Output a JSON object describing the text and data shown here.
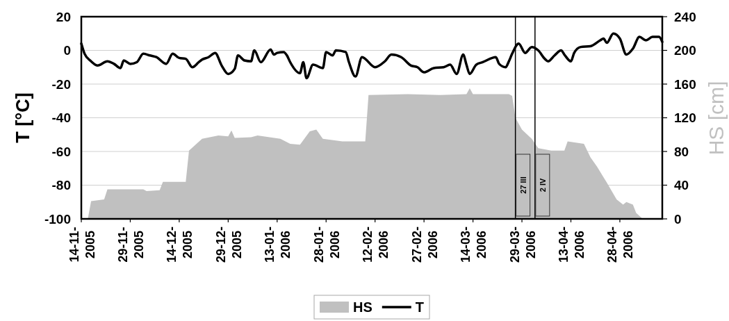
{
  "chart_data": {
    "type": "line",
    "ylabel": "T [°C]",
    "y2label": "HS [cm]",
    "xlim": [
      "2005-11-14",
      "2006-05-11"
    ],
    "xticks": [
      {
        "value": "2005-11-14",
        "label": "14-11-2005"
      },
      {
        "value": "2005-11-29",
        "label": "29-11-2005"
      },
      {
        "value": "2005-12-14",
        "label": "14-12-2005"
      },
      {
        "value": "2005-12-29",
        "label": "29-12-2005"
      },
      {
        "value": "2006-01-13",
        "label": "13-01-2006"
      },
      {
        "value": "2006-01-28",
        "label": "28-01-2006"
      },
      {
        "value": "2006-02-12",
        "label": "12-02-2006"
      },
      {
        "value": "2006-02-27",
        "label": "27-02-2006"
      },
      {
        "value": "2006-03-14",
        "label": "14-03-2006"
      },
      {
        "value": "2006-03-29",
        "label": "29-03-2006"
      },
      {
        "value": "2006-04-13",
        "label": "13-04-2006"
      },
      {
        "value": "2006-04-28",
        "label": "28-04-2006"
      }
    ],
    "ylim": [
      -100,
      20
    ],
    "yticks": [
      -100,
      -80,
      -60,
      -40,
      -20,
      0,
      20
    ],
    "y2lim": [
      0,
      240
    ],
    "y2ticks": [
      0,
      40,
      80,
      120,
      160,
      200,
      240
    ],
    "grid": "y",
    "legend": "bottom",
    "series": [
      {
        "name": "HS",
        "type": "area",
        "axis": "y2",
        "color": "#c0c0c0",
        "x": [
          "2005-11-14",
          "2005-11-16",
          "2005-11-17",
          "2005-11-21",
          "2005-11-22",
          "2005-12-03",
          "2005-12-04",
          "2005-12-08",
          "2005-12-09",
          "2005-12-16",
          "2005-12-17",
          "2005-12-21",
          "2005-12-26",
          "2005-12-29",
          "2005-12-30",
          "2005-12-31",
          "2006-01-05",
          "2006-01-07",
          "2006-01-14",
          "2006-01-17",
          "2006-01-20",
          "2006-01-23",
          "2006-01-25",
          "2006-01-27",
          "2006-02-02",
          "2006-02-09",
          "2006-02-10",
          "2006-02-22",
          "2006-03-04",
          "2006-03-12",
          "2006-03-13",
          "2006-03-14",
          "2006-03-25",
          "2006-03-26",
          "2006-03-27",
          "2006-03-29",
          "2006-04-01",
          "2006-04-03",
          "2006-04-07",
          "2006-04-11",
          "2006-04-12",
          "2006-04-17",
          "2006-04-19",
          "2006-04-21",
          "2006-04-24",
          "2006-04-27",
          "2006-04-29",
          "2006-04-30",
          "2006-05-02",
          "2006-05-03",
          "2006-05-05",
          "2006-05-11"
        ],
        "values": [
          0,
          0,
          21,
          23,
          35,
          35,
          33,
          34,
          44,
          44,
          81,
          95,
          99,
          98,
          105,
          96,
          97,
          99,
          95,
          89,
          88,
          104,
          106,
          95,
          92,
          92,
          147,
          148,
          147,
          148,
          155,
          148,
          148,
          146,
          120,
          106,
          95,
          84,
          81,
          81,
          92,
          89,
          73,
          62,
          43,
          23,
          17,
          20,
          17,
          7,
          0,
          0
        ]
      },
      {
        "name": "T",
        "type": "line",
        "color": "#000000",
        "x": [
          "2005-11-14",
          "2005-11-15",
          "2005-11-17",
          "2005-11-19",
          "2005-11-22",
          "2005-11-24",
          "2005-11-26",
          "2005-11-27",
          "2005-11-29",
          "2005-12-01",
          "2005-12-03",
          "2005-12-05",
          "2005-12-07",
          "2005-12-10",
          "2005-12-12",
          "2005-12-14",
          "2005-12-16",
          "2005-12-18",
          "2005-12-20",
          "2005-12-21",
          "2005-12-23",
          "2005-12-25",
          "2005-12-27",
          "2005-12-29",
          "2005-12-31",
          "2006-01-01",
          "2006-01-03",
          "2006-01-05",
          "2006-01-06",
          "2006-01-08",
          "2006-01-11",
          "2006-01-12",
          "2006-01-13",
          "2006-01-15",
          "2006-01-16",
          "2006-01-17",
          "2006-01-20",
          "2006-01-21",
          "2006-01-22",
          "2006-01-24",
          "2006-01-27",
          "2006-01-28",
          "2006-01-30",
          "2006-01-31",
          "2006-02-03",
          "2006-02-04",
          "2006-02-06",
          "2006-02-08",
          "2006-02-12",
          "2006-02-15",
          "2006-02-17",
          "2006-02-20",
          "2006-02-23",
          "2006-02-25",
          "2006-02-27",
          "2006-03-02",
          "2006-03-05",
          "2006-03-07",
          "2006-03-09",
          "2006-03-11",
          "2006-03-12",
          "2006-03-13",
          "2006-03-15",
          "2006-03-17",
          "2006-03-21",
          "2006-03-22",
          "2006-03-24",
          "2006-03-25",
          "2006-03-26",
          "2006-03-28",
          "2006-03-30",
          "2006-04-01",
          "2006-04-03",
          "2006-04-05",
          "2006-04-06",
          "2006-04-08",
          "2006-04-10",
          "2006-04-11",
          "2006-04-13",
          "2006-04-14",
          "2006-04-16",
          "2006-04-19",
          "2006-04-22",
          "2006-04-23",
          "2006-04-24",
          "2006-04-26",
          "2006-04-28",
          "2006-04-30",
          "2006-05-02",
          "2006-05-04",
          "2006-05-06",
          "2006-05-08",
          "2006-05-10",
          "2006-05-11"
        ],
        "values": [
          4,
          -2,
          -6.5,
          -9,
          -6.5,
          -8,
          -10.5,
          -6,
          -8,
          -7,
          -2,
          -3,
          -4,
          -8,
          -2,
          -4.5,
          -5,
          -10,
          -7,
          -5.5,
          -4,
          -1.5,
          -9,
          -14,
          -11,
          -3,
          -6,
          -6.5,
          0,
          -7,
          0.5,
          -2.5,
          -1.5,
          -1,
          -3,
          -7,
          -13.5,
          -7,
          -16.5,
          -8.5,
          -10.5,
          -1,
          -3,
          0,
          -1,
          -7,
          -15.5,
          -4,
          -10,
          -6.5,
          -2.5,
          -4,
          -9,
          -10,
          -13,
          -10.5,
          -10,
          -8.5,
          -14,
          -2.5,
          -8.5,
          -14,
          -8.5,
          -7,
          -4,
          -8,
          -10,
          -6.5,
          -2,
          4,
          -1.5,
          2,
          0,
          -5,
          -6.5,
          -3,
          0,
          -2.5,
          -6.5,
          -1.5,
          2,
          2.5,
          6,
          7,
          4.5,
          10,
          7,
          -2.5,
          1,
          8,
          6,
          8,
          8,
          5
        ]
      }
    ],
    "ref_lines": [
      {
        "axis": "x",
        "value": "2006-03-27",
        "label": "27 III",
        "color": "#000000"
      },
      {
        "axis": "x",
        "value": "2006-04-02",
        "label": "2 IV",
        "color": "#000000"
      }
    ]
  }
}
